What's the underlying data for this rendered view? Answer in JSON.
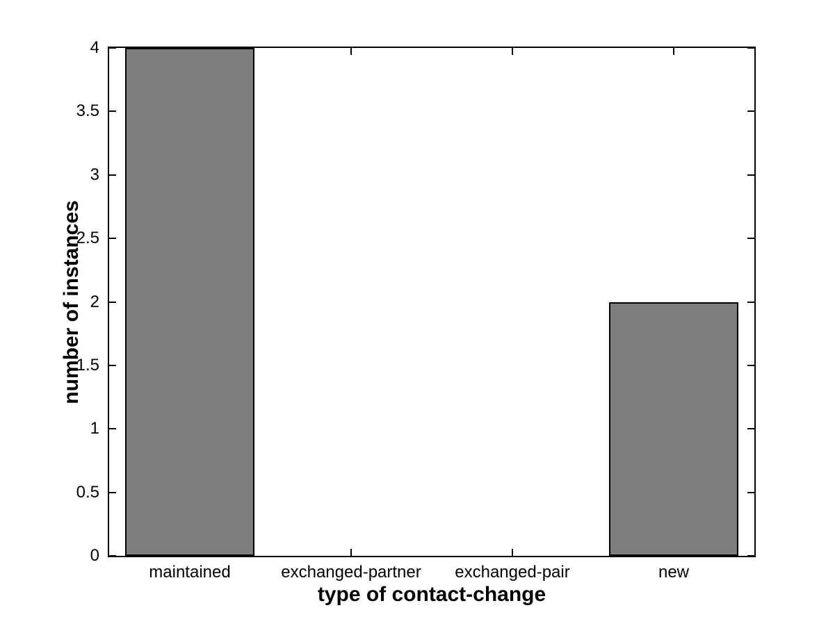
{
  "chart_data": {
    "type": "bar",
    "title": "",
    "categories": [
      "maintained",
      "exchanged-partner",
      "exchanged-pair",
      "new"
    ],
    "values": [
      4,
      0,
      0,
      2
    ],
    "xlabel": "type of contact-change",
    "ylabel": "number of instances",
    "ylim": [
      0,
      4
    ],
    "yticks": [
      0,
      0.5,
      1,
      1.5,
      2,
      2.5,
      3,
      3.5,
      4
    ],
    "ytick_labels": [
      "0",
      "0.5",
      "1",
      "1.5",
      "2",
      "2.5",
      "3",
      "3.5",
      "4"
    ],
    "bar_width_fraction": 0.8,
    "bar_color": "#7d7d7d",
    "bar_edge_color": "#000000",
    "axis_color": "#000000",
    "background_color": "#ffffff",
    "grid": false,
    "legend_position": "none"
  }
}
